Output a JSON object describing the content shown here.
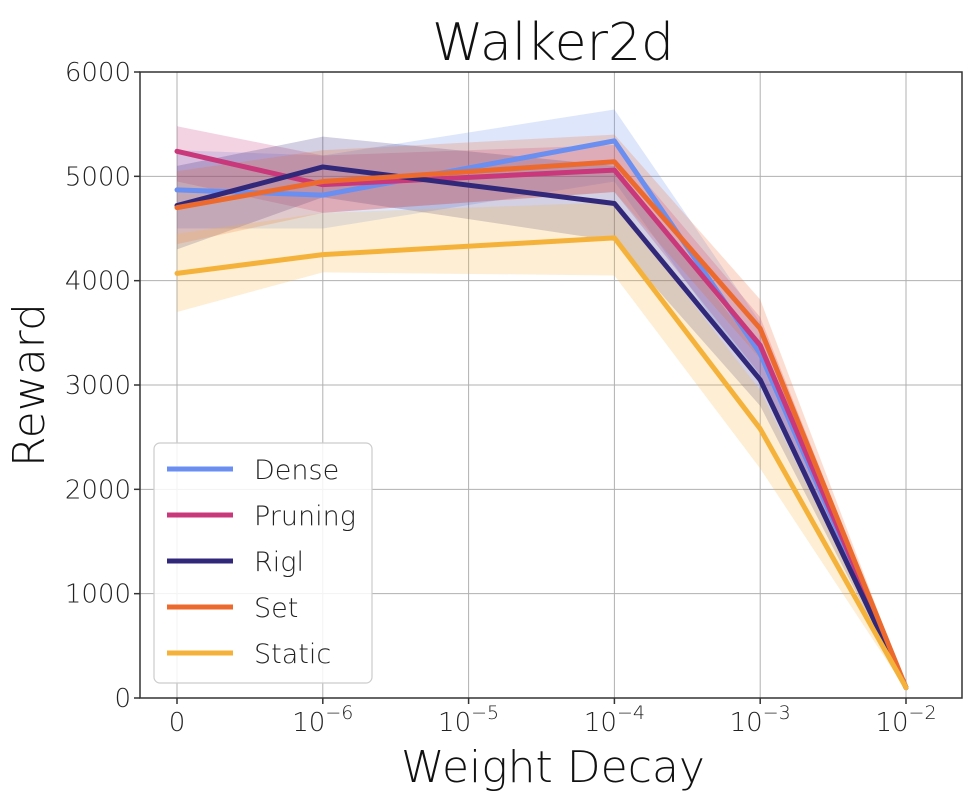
{
  "chart_data": {
    "type": "line",
    "title": "Walker2d",
    "xlabel": "Weight Decay",
    "ylabel": "Reward",
    "ylim": [
      0,
      6000
    ],
    "grid": true,
    "legend_position": "lower-left",
    "x_categories": [
      {
        "base": "0",
        "exp": ""
      },
      {
        "base": "10",
        "exp": "−6"
      },
      {
        "base": "10",
        "exp": "−5"
      },
      {
        "base": "10",
        "exp": "−4"
      },
      {
        "base": "10",
        "exp": "−3"
      },
      {
        "base": "10",
        "exp": "−2"
      }
    ],
    "x_points": [
      0,
      1,
      3,
      4,
      5
    ],
    "y_ticks": [
      "0",
      "1000",
      "2000",
      "3000",
      "4000",
      "5000",
      "6000"
    ],
    "y_tick_values": [
      0,
      1000,
      2000,
      3000,
      4000,
      5000,
      6000
    ],
    "series": [
      {
        "name": "Dense",
        "color": "#6a8ff0",
        "values": [
          4870,
          4820,
          5340,
          3300,
          100
        ],
        "lower": [
          4500,
          4500,
          4950,
          3000,
          80
        ],
        "upper": [
          5250,
          5200,
          5640,
          3600,
          120
        ]
      },
      {
        "name": "Pruning",
        "color": "#c8387a",
        "values": [
          5240,
          4920,
          5060,
          3380,
          100
        ],
        "lower": [
          4950,
          4650,
          4850,
          3100,
          80
        ],
        "upper": [
          5480,
          5200,
          5300,
          3650,
          120
        ]
      },
      {
        "name": "Rigl",
        "color": "#32287a",
        "values": [
          4720,
          5090,
          4740,
          3050,
          100
        ],
        "lower": [
          4300,
          4800,
          4380,
          2800,
          80
        ],
        "upper": [
          5100,
          5380,
          5100,
          3300,
          120
        ]
      },
      {
        "name": "Set",
        "color": "#ec6a2e",
        "values": [
          4700,
          4950,
          5140,
          3540,
          100
        ],
        "lower": [
          4350,
          4650,
          4850,
          3250,
          80
        ],
        "upper": [
          5050,
          5250,
          5400,
          3820,
          120
        ]
      },
      {
        "name": "Static",
        "color": "#f5b23a",
        "values": [
          4070,
          4250,
          4410,
          2580,
          100
        ],
        "lower": [
          3700,
          4080,
          4050,
          2200,
          80
        ],
        "upper": [
          4450,
          4650,
          4750,
          2950,
          120
        ]
      }
    ]
  }
}
